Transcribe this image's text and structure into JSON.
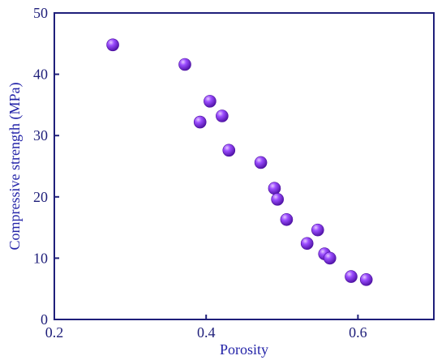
{
  "chart_data": {
    "type": "scatter",
    "title": "",
    "xlabel": "Porosity",
    "ylabel": "Compressive strength (MPa)",
    "xlim": [
      0.2,
      0.7
    ],
    "ylim": [
      0,
      50
    ],
    "xticks": [
      0.2,
      0.4,
      0.6
    ],
    "yticks": [
      0,
      10,
      20,
      30,
      40,
      50
    ],
    "xtick_labels": [
      "0.2",
      "0.4",
      "0.6"
    ],
    "ytick_labels": [
      "0",
      "10",
      "20",
      "30",
      "40",
      "50"
    ],
    "grid": false,
    "legend": "none",
    "series": [
      {
        "marker_color": "#8a2be2",
        "points": [
          {
            "x": 0.277,
            "y": 44.8
          },
          {
            "x": 0.372,
            "y": 41.6
          },
          {
            "x": 0.405,
            "y": 35.6
          },
          {
            "x": 0.421,
            "y": 33.2
          },
          {
            "x": 0.392,
            "y": 32.2
          },
          {
            "x": 0.43,
            "y": 27.6
          },
          {
            "x": 0.472,
            "y": 25.6
          },
          {
            "x": 0.49,
            "y": 21.4
          },
          {
            "x": 0.494,
            "y": 19.6
          },
          {
            "x": 0.506,
            "y": 16.3
          },
          {
            "x": 0.547,
            "y": 14.6
          },
          {
            "x": 0.533,
            "y": 12.4
          },
          {
            "x": 0.556,
            "y": 10.7
          },
          {
            "x": 0.563,
            "y": 10.0
          },
          {
            "x": 0.591,
            "y": 7.0
          },
          {
            "x": 0.611,
            "y": 6.5
          }
        ]
      }
    ],
    "colors": {
      "axis": "#1f1f7a",
      "axis_title": "#2323a8",
      "marker": "#8a2be2",
      "marker_dark": "#4b0fa0",
      "marker_highlight": "#e6c8ff"
    }
  }
}
